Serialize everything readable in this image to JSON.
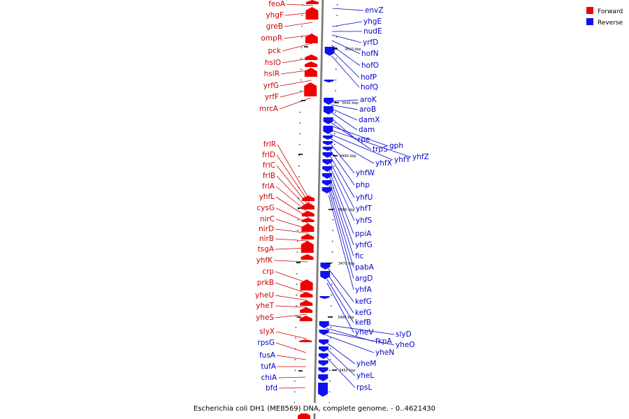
{
  "caption": "Escherichia coli DH1 (ME8569) DNA, complete genome. - 0..4621430",
  "legend": [
    {
      "label": "Forward",
      "color": "#ee0000"
    },
    {
      "label": "Reverse",
      "color": "#1111ee"
    }
  ],
  "colors": {
    "forward": "#ee0000",
    "reverse": "#1111ee",
    "forward_text": "#cc0000",
    "reverse_text": "#0000cc",
    "backbone": "#888888"
  },
  "scale_ticks": [
    "3510 kbp",
    "3500 kbp",
    "3490 kbp",
    "3480 kbp",
    "3470 kbp",
    "3460 kbp",
    "3450 kbp"
  ],
  "forward_genes": [
    "feoA",
    "yhgF",
    "greB",
    "ompR",
    "pck",
    "hslO",
    "hslR",
    "yrfG",
    "yrfF",
    "mrcA",
    "frlR",
    "frlD",
    "frlC",
    "frlB",
    "frlA",
    "yhfL",
    "cysG",
    "nirC",
    "nirD",
    "nirB",
    "tsgA",
    "yhfK",
    "crp",
    "prkB",
    "yheU",
    "yheT",
    "yheS",
    "slyX",
    "rpsG",
    "fusA",
    "tufA",
    "chiA",
    "bfd"
  ],
  "reverse_genes": [
    "envZ",
    "yhgE",
    "nudE",
    "yrfD",
    "hofN",
    "hofO",
    "hofP",
    "hofQ",
    "aroK",
    "aroB",
    "damX",
    "dam",
    "rpe",
    "trpS",
    "gph",
    "yhfZ",
    "yhfY",
    "yhfX",
    "yhfW",
    "php",
    "yhfU",
    "yhfT",
    "yhfS",
    "ppiA",
    "yhfG",
    "fic",
    "pabA",
    "argD",
    "yhfA",
    "kefG",
    "kefG",
    "kefB",
    "yheV",
    "slyD",
    "fkpA",
    "yheO",
    "yheN",
    "yheM",
    "yheL",
    "rpsL"
  ]
}
